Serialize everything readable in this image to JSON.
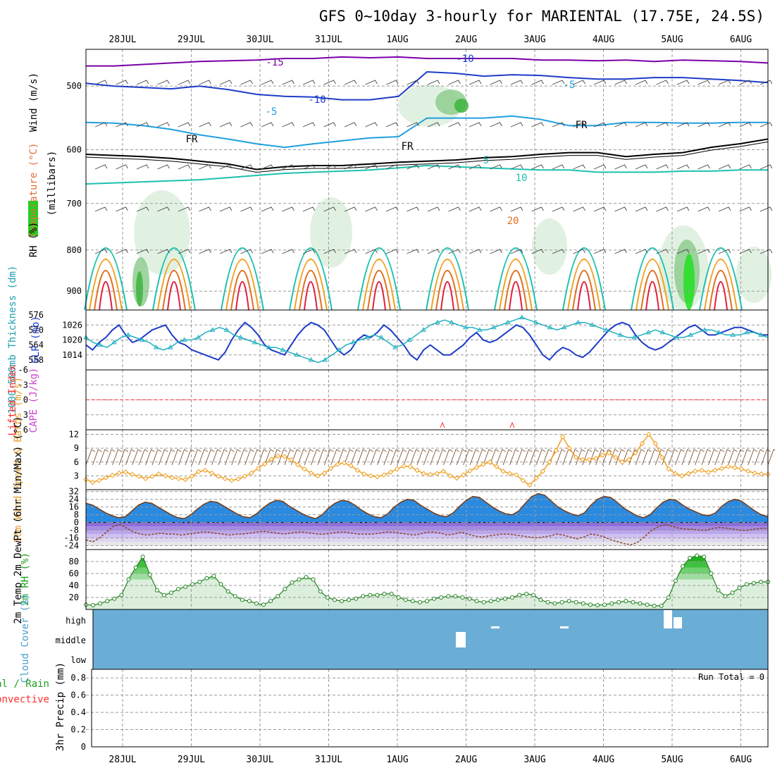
{
  "title": "GFS 0~10day 3-hourly for MARIENTAL (17.75E, 24.5S)",
  "chart_data": [
    {
      "type": "contour",
      "panel": "upper-air",
      "x_labels": [
        "28JUL",
        "29JUL",
        "30JUL",
        "31JUL",
        "1AUG",
        "2AUG",
        "3AUG",
        "4AUG",
        "5AUG",
        "6AUG"
      ],
      "ylabel_wind": "Wind (m/s)",
      "ylabel_temp": "Temperature (°C)",
      "ylabel_rh": "RH (%)",
      "ylabel_units": "(millibars)",
      "y_ticks": [
        "500",
        "600",
        "700",
        "800",
        "900"
      ],
      "ylim": [
        450,
        950
      ],
      "y_scale": "log-pressure",
      "contour_labels": [
        "-15",
        "-10",
        "-5",
        "FR",
        "5",
        "10",
        "20",
        "-5",
        "FR",
        "FR",
        "-10"
      ],
      "isotherms": [
        {
          "label": "-15",
          "color": "#7b00a8",
          "p": [
            472,
            472,
            470,
            468,
            466,
            465,
            464,
            462,
            462,
            460,
            461,
            460,
            462,
            462,
            462,
            462,
            464,
            464,
            465,
            464,
            466,
            464,
            465,
            466,
            468
          ]
        },
        {
          "label": "-10",
          "color": "#1e3cc8",
          "p": [
            496,
            500,
            502,
            504,
            500,
            505,
            512,
            515,
            516,
            520,
            520,
            515,
            480,
            482,
            486,
            484,
            485,
            488,
            490,
            490,
            488,
            488,
            490,
            492,
            495
          ]
        },
        {
          "label": "-5",
          "color": "#1fa0e0",
          "p": [
            555,
            556,
            560,
            566,
            575,
            582,
            590,
            596,
            590,
            585,
            580,
            578,
            548,
            548,
            548,
            545,
            550,
            560,
            560,
            555,
            555,
            556,
            556,
            555,
            555
          ]
        },
        {
          "label": "FR",
          "color": "#000000",
          "p": [
            608,
            610,
            612,
            615,
            620,
            625,
            635,
            630,
            628,
            628,
            625,
            622,
            620,
            618,
            614,
            612,
            608,
            605,
            605,
            612,
            608,
            605,
            596,
            590,
            582
          ]
        },
        {
          "label": "5",
          "color": "#1ec0b0",
          "p": [
            662,
            660,
            658,
            656,
            654,
            650,
            646,
            642,
            640,
            638,
            636,
            632,
            628,
            630,
            632,
            634,
            636,
            636,
            640,
            640,
            640,
            638,
            638,
            636,
            636
          ]
        }
      ],
      "rh_shading_levels": [
        70,
        80,
        90
      ]
    },
    {
      "type": "line",
      "panel": "thickness-slp",
      "ylabel_left": "1000-500mb Thickness (dm)",
      "ylabel_right": "SLP (mb)",
      "y_ticks_left": [
        "576",
        "570",
        "564",
        "558"
      ],
      "y_ticks_right": [
        "1026",
        "1020",
        "1014"
      ],
      "series": [
        {
          "name": "SLP (mb)",
          "color": "#1e3cc8",
          "ylim": [
            1008,
            1032
          ],
          "values": [
            1018,
            1016,
            1019,
            1021,
            1024,
            1026,
            1022,
            1019,
            1020,
            1022,
            1024,
            1025,
            1026,
            1022,
            1019,
            1018,
            1016,
            1015,
            1014,
            1013,
            1012,
            1015,
            1020,
            1024,
            1027,
            1025,
            1022,
            1018,
            1016,
            1015,
            1014,
            1018,
            1022,
            1025,
            1027,
            1026,
            1024,
            1020,
            1016,
            1014,
            1016,
            1020,
            1022,
            1021,
            1023,
            1026,
            1024,
            1021,
            1018,
            1014,
            1012,
            1016,
            1018,
            1016,
            1014,
            1014,
            1016,
            1018,
            1021,
            1023,
            1020,
            1019,
            1020,
            1022,
            1024,
            1026,
            1025,
            1022,
            1018,
            1014,
            1012,
            1015,
            1017,
            1016,
            1014,
            1013,
            1015,
            1018,
            1021,
            1024,
            1026,
            1027,
            1026,
            1022,
            1019,
            1017,
            1016,
            1017,
            1019,
            1021,
            1023,
            1025,
            1026,
            1024,
            1022,
            1022,
            1023,
            1024,
            1025,
            1025,
            1024,
            1023,
            1022,
            1022
          ]
        },
        {
          "name": "Thickness (dm)",
          "color": "#20b0c0",
          "ylim": [
            554,
            578
          ],
          "values": [
            567,
            565,
            564,
            563,
            565,
            567,
            568,
            567,
            566,
            565,
            563,
            562,
            563,
            565,
            566,
            566,
            567,
            569,
            570,
            571,
            570,
            568,
            567,
            566,
            565,
            564,
            563,
            563,
            562,
            561,
            560,
            559,
            558,
            557,
            558,
            560,
            562,
            564,
            565,
            566,
            567,
            568,
            567,
            565,
            563,
            564,
            566,
            568,
            570,
            572,
            573,
            574,
            573,
            572,
            571,
            571,
            570,
            570,
            571,
            572,
            573,
            574,
            575,
            574,
            573,
            572,
            571,
            570,
            571,
            572,
            573,
            573,
            572,
            571,
            570,
            569,
            568,
            567,
            567,
            568,
            569,
            570,
            569,
            568,
            567,
            567,
            568,
            569,
            570,
            570,
            569,
            568,
            568,
            568,
            569,
            569,
            568,
            567
          ]
        }
      ]
    },
    {
      "type": "line",
      "panel": "cape-li",
      "ylabel_left": "Lifted Index",
      "ylabel_right": "CAPE (J/kg)",
      "y_ticks": [
        "-6",
        "-3",
        "0",
        "3",
        "6"
      ],
      "ylim": [
        -6,
        6
      ],
      "series": [
        {
          "name": "Lifted Index",
          "color": "#ff3030",
          "values": [
            0
          ]
        },
        {
          "name": "CAPE (J/kg)",
          "color": "#cc44cc",
          "values": [
            0
          ]
        }
      ]
    },
    {
      "type": "line",
      "panel": "wind10m",
      "ylabel": "10m Wind Speed & Barbs (m/s)",
      "y_ticks": [
        "12",
        "9",
        "6",
        "3"
      ],
      "ylim": [
        0,
        13
      ],
      "series": [
        {
          "name": "Speed (m/s)",
          "color": "#f0a020",
          "values": [
            2.2,
            1.6,
            2.0,
            2.6,
            3.1,
            3.6,
            3.8,
            3.3,
            2.9,
            2.4,
            2.9,
            3.4,
            3.0,
            2.6,
            2.4,
            2.2,
            2.9,
            3.9,
            4.2,
            3.6,
            2.9,
            2.4,
            2.0,
            2.3,
            2.9,
            3.6,
            4.6,
            5.6,
            6.6,
            7.3,
            7.2,
            6.5,
            5.4,
            4.5,
            3.6,
            3.0,
            3.6,
            4.6,
            5.5,
            5.8,
            5.2,
            4.2,
            3.4,
            3.0,
            2.8,
            3.2,
            3.8,
            4.5,
            5.1,
            5.0,
            4.2,
            3.5,
            3.3,
            3.5,
            4.0,
            3.0,
            2.5,
            3.2,
            4.1,
            4.8,
            5.5,
            6.0,
            5.0,
            4.0,
            3.5,
            3.2,
            2.0,
            1.0,
            2.5,
            4.0,
            6.0,
            8.5,
            11.5,
            9.0,
            7.0,
            6.5,
            6.5,
            6.8,
            7.5,
            8.0,
            7.0,
            6.0,
            6.5,
            8.0,
            10.0,
            12.0,
            10.0,
            7.0,
            4.5,
            3.5,
            3.0,
            3.5,
            4.0,
            4.2,
            3.8,
            4.2,
            4.6,
            5.0,
            4.8,
            4.5,
            4.0,
            3.6,
            3.4,
            3.3
          ]
        }
      ]
    },
    {
      "type": "line",
      "panel": "temp2m",
      "ylabel": "2m Temp 2m DewPt (6hr Min/Max) (°C)",
      "y_ticks": [
        "32",
        "24",
        "16",
        "8",
        "0",
        "-8",
        "-16",
        "-24"
      ],
      "ylim": [
        -28,
        34
      ],
      "series": [
        {
          "name": "2m Temp",
          "color": "#7a3a10",
          "values": [
            20,
            18,
            14,
            10,
            7,
            5,
            6,
            12,
            18,
            21,
            20,
            16,
            12,
            8,
            5,
            4,
            8,
            14,
            19,
            22,
            21,
            17,
            13,
            9,
            6,
            5,
            9,
            15,
            20,
            23,
            22,
            17,
            13,
            9,
            6,
            4,
            8,
            15,
            20,
            23,
            22,
            18,
            13,
            9,
            6,
            5,
            9,
            16,
            21,
            24,
            23,
            18,
            14,
            10,
            7,
            6,
            10,
            17,
            23,
            27,
            26,
            21,
            16,
            12,
            9,
            8,
            12,
            20,
            27,
            30,
            28,
            22,
            16,
            12,
            9,
            7,
            10,
            18,
            24,
            27,
            26,
            21,
            15,
            11,
            7,
            5,
            8,
            15,
            21,
            24,
            23,
            18,
            14,
            11,
            8,
            7,
            10,
            17,
            22,
            24,
            22,
            17,
            12,
            8,
            6
          ]
        },
        {
          "name": "2m DewPt",
          "color": "#884422",
          "values": [
            -18,
            -20,
            -16,
            -10,
            -4,
            -2,
            -6,
            -10,
            -12,
            -13,
            -12,
            -11,
            -12,
            -12,
            -13,
            -12,
            -11,
            -10,
            -10,
            -11,
            -12,
            -13,
            -12,
            -12,
            -11,
            -10,
            -9,
            -10,
            -11,
            -12,
            -11,
            -10,
            -10,
            -11,
            -12,
            -12,
            -11,
            -10,
            -10,
            -11,
            -12,
            -12,
            -12,
            -11,
            -10,
            -10,
            -11,
            -12,
            -13,
            -12,
            -10,
            -10,
            -11,
            -13,
            -12,
            -10,
            -12,
            -14,
            -15,
            -14,
            -13,
            -12,
            -12,
            -13,
            -14,
            -15,
            -16,
            -15,
            -14,
            -12,
            -13,
            -15,
            -17,
            -15,
            -12,
            -13,
            -15,
            -18,
            -20,
            -22,
            -23,
            -20,
            -14,
            -8,
            -4,
            -2,
            -4,
            -6,
            -7,
            -7,
            -8,
            -8,
            -6,
            -5,
            -6,
            -7,
            -8,
            -8,
            -7,
            -6,
            -6
          ]
        }
      ]
    },
    {
      "type": "area",
      "panel": "rh2m",
      "ylabel": "2m RH (%)",
      "y_ticks": [
        "80",
        "60",
        "40",
        "20"
      ],
      "ylim": [
        0,
        100
      ],
      "series": [
        {
          "name": "2m RH",
          "color": "#20a020",
          "values": [
            8,
            7,
            10,
            14,
            18,
            24,
            50,
            70,
            88,
            58,
            32,
            24,
            28,
            34,
            38,
            42,
            46,
            52,
            56,
            42,
            30,
            22,
            16,
            14,
            10,
            8,
            14,
            22,
            34,
            45,
            50,
            54,
            50,
            30,
            20,
            16,
            14,
            16,
            18,
            22,
            24,
            24,
            26,
            26,
            20,
            16,
            14,
            12,
            14,
            18,
            20,
            22,
            22,
            20,
            18,
            14,
            12,
            14,
            16,
            18,
            20,
            24,
            26,
            24,
            16,
            12,
            10,
            12,
            14,
            12,
            10,
            8,
            7,
            8,
            10,
            12,
            14,
            12,
            10,
            8,
            6,
            6,
            20,
            48,
            72,
            86,
            90,
            88,
            60,
            32,
            22,
            28,
            36,
            42,
            44,
            46,
            46
          ]
        }
      ]
    },
    {
      "type": "heatmap",
      "panel": "cloud",
      "ylabel": "Cloud Cover (%)",
      "y_ticks": [
        "high",
        "middle",
        "low"
      ],
      "series": [
        {
          "name": "high",
          "values": [
            0
          ]
        },
        {
          "name": "middle",
          "values": [
            0
          ]
        },
        {
          "name": "low",
          "values": [
            0
          ]
        }
      ]
    },
    {
      "type": "bar",
      "panel": "precip",
      "ylabel": "3hr Precip (mm)",
      "ylabel_total": "Total / Rain",
      "ylabel_conv": "Convective",
      "annotation": "Run Total = 0",
      "y_ticks": [
        "0.8",
        "0.6",
        "0.4",
        "0.2",
        "0"
      ],
      "ylim": [
        0,
        0.9
      ],
      "values": [
        0
      ]
    }
  ],
  "colors": {
    "grid": "#9a9a9a",
    "cloud_fill": "#6aaed6",
    "rh_light": "#dcefdc",
    "rh_mid": "#8fcc8f",
    "rh_dark": "#3cb43c",
    "temp_fill_warm": "#2a8ae0",
    "temp_fill_cold": "#9f7fe0"
  }
}
